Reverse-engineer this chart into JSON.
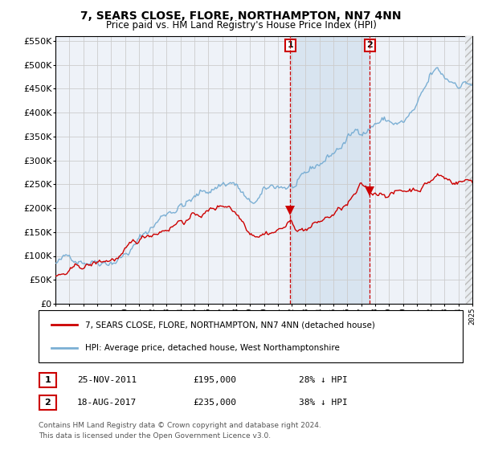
{
  "title": "7, SEARS CLOSE, FLORE, NORTHAMPTON, NN7 4NN",
  "subtitle": "Price paid vs. HM Land Registry's House Price Index (HPI)",
  "legend_house": "7, SEARS CLOSE, FLORE, NORTHAMPTON, NN7 4NN (detached house)",
  "legend_hpi": "HPI: Average price, detached house, West Northamptonshire",
  "annotation1_date": "25-NOV-2011",
  "annotation1_price": "£195,000",
  "annotation1_pct": "28% ↓ HPI",
  "annotation2_date": "18-AUG-2017",
  "annotation2_price": "£235,000",
  "annotation2_pct": "38% ↓ HPI",
  "footnote1": "Contains HM Land Registry data © Crown copyright and database right 2024.",
  "footnote2": "This data is licensed under the Open Government Licence v3.0.",
  "sale1_x": 2011.9,
  "sale1_y": 195000,
  "sale2_x": 2017.63,
  "sale2_y": 235000,
  "bg_color": "#ffffff",
  "plot_bg": "#eef2f8",
  "hpi_color": "#7bafd4",
  "house_color": "#cc0000",
  "grid_color": "#cccccc",
  "shade_color": "#d8e4f0",
  "dashed_color": "#cc0000",
  "xmin": 1995,
  "xmax": 2025,
  "ymin": 0,
  "ymax": 560000,
  "yticks": [
    0,
    50000,
    100000,
    150000,
    200000,
    250000,
    300000,
    350000,
    400000,
    450000,
    500000,
    550000
  ]
}
